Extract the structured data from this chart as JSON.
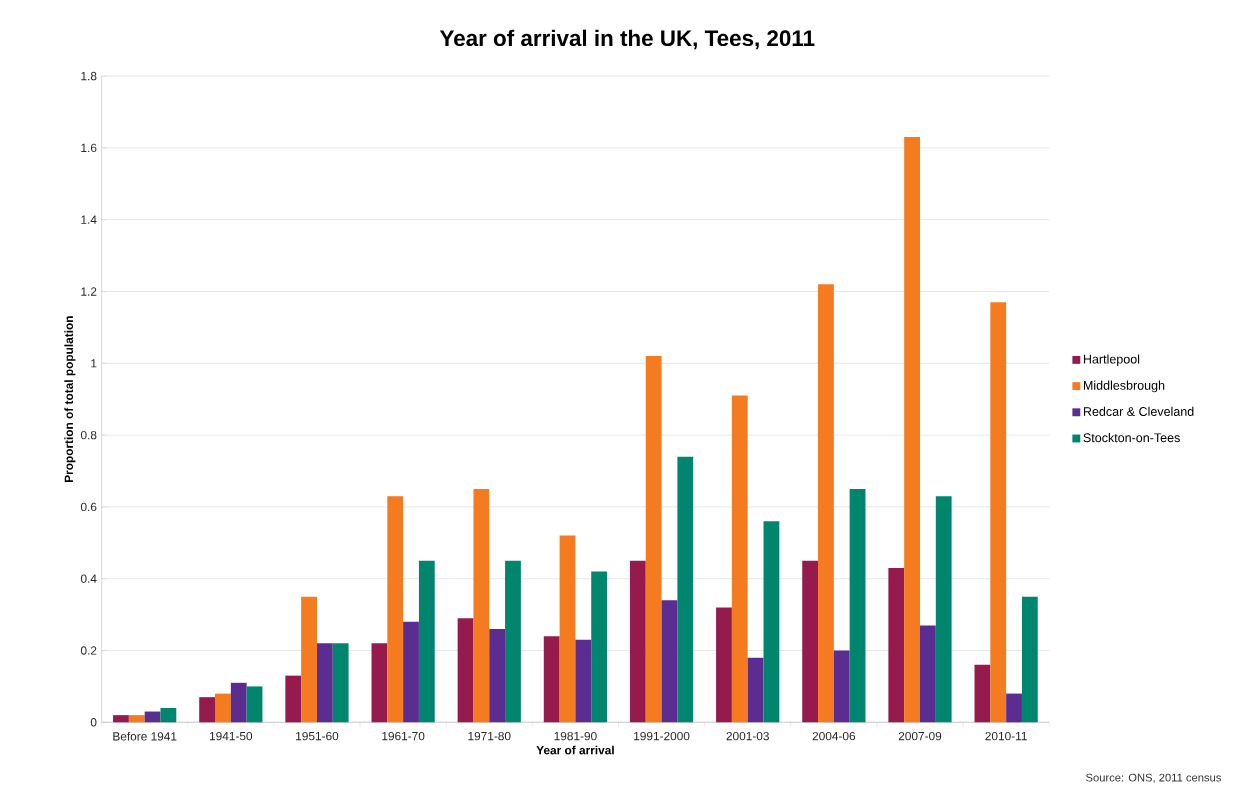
{
  "chart_data": {
    "type": "bar",
    "title": "Year of arrival in the UK, Tees, 2011",
    "xlabel": "Year of arrival",
    "ylabel": "Proportion of total population",
    "categories": [
      "Before 1941",
      "1941-50",
      "1951-60",
      "1961-70",
      "1971-80",
      "1981-90",
      "1991-2000",
      "2001-03",
      "2004-06",
      "2007-09",
      "2010-11"
    ],
    "series": [
      {
        "name": "Hartlepool",
        "color": "#951b4f",
        "values": [
          0.02,
          0.07,
          0.13,
          0.22,
          0.29,
          0.24,
          0.45,
          0.32,
          0.45,
          0.43,
          0.16
        ]
      },
      {
        "name": "Middlesbrough",
        "color": "#f47b20",
        "values": [
          0.02,
          0.08,
          0.35,
          0.63,
          0.65,
          0.52,
          1.02,
          0.91,
          1.22,
          1.63,
          1.17
        ]
      },
      {
        "name": "Redcar & Cleveland",
        "color": "#5c2d91",
        "values": [
          0.03,
          0.11,
          0.22,
          0.28,
          0.26,
          0.23,
          0.34,
          0.18,
          0.2,
          0.27,
          0.08
        ]
      },
      {
        "name": "Stockton-on-Tees",
        "color": "#00866f",
        "values": [
          0.04,
          0.1,
          0.22,
          0.45,
          0.45,
          0.42,
          0.74,
          0.56,
          0.65,
          0.63,
          0.35
        ]
      }
    ],
    "ylim": [
      0,
      1.8
    ],
    "yticks": [
      0,
      0.2,
      0.4,
      0.6,
      0.8,
      1,
      1.2,
      1.4,
      1.6,
      1.8
    ],
    "grid": "y",
    "legend": "right",
    "annotations": [
      "Source: ONS, 2011 census"
    ]
  }
}
